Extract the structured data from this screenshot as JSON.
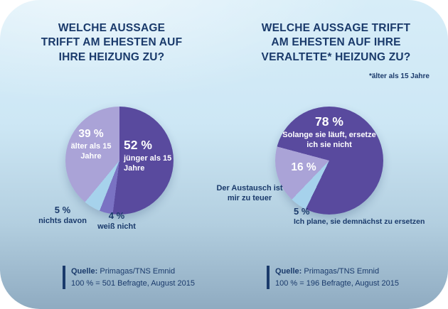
{
  "colors": {
    "text_navy": "#1a3a6b",
    "dark_purple": "#594a9e",
    "medium_purple": "#7a72c3",
    "lavender": "#aaa3d7",
    "light_blue": "#a6d2ec"
  },
  "chart_data": [
    {
      "type": "pie",
      "title": "WELCHE AUSSAGE TRIFFT AM EHESTEN AUF IHRE HEIZUNG ZU?",
      "title_lines": [
        "WELCHE AUSSAGE",
        "TRIFFT AM EHESTEN AUF",
        "IHRE HEIZUNG ZU?"
      ],
      "slices": [
        {
          "label": "jünger als 15 Jahre",
          "value": 52,
          "value_label": "52 %",
          "color": "#594a9e"
        },
        {
          "label": "weiß nicht",
          "value": 4,
          "value_label": "4 %",
          "color": "#7a72c3"
        },
        {
          "label": "nichts davon",
          "value": 5,
          "value_label": "5 %",
          "color": "#a6d2ec"
        },
        {
          "label": "älter als 15 Jahre",
          "value": 39,
          "value_label": "39 %",
          "color": "#aaa3d7"
        }
      ],
      "source_label": "Quelle:",
      "source_name": "Primagas/TNS Emnid",
      "source_line2": "100 % = 501 Befragte, August 2015"
    },
    {
      "type": "pie",
      "title": "WELCHE AUSSAGE TRIFFT AM EHESTEN AUF IHRE VERALTETE* HEIZUNG ZU?",
      "title_lines": [
        "WELCHE AUSSAGE TRIFFT",
        "AM EHESTEN AUF IHRE",
        "VERALTETE* HEIZUNG ZU?"
      ],
      "footnote": "*älter als 15 Jahre",
      "slices": [
        {
          "label": "Solange sie läuft, ersetze ich sie nicht",
          "value": 78,
          "value_label": "78 %",
          "color": "#594a9e"
        },
        {
          "label": "Ich plane, sie demnächst zu ersetzen",
          "value": 5,
          "value_label": "5 %",
          "color": "#a6d2ec"
        },
        {
          "label": "Der Austausch ist mir zu teuer",
          "value": 16,
          "value_label": "16 %",
          "color": "#aaa3d7"
        }
      ],
      "source_label": "Quelle:",
      "source_name": "Primagas/TNS Emnid",
      "source_line2": "100 % = 196 Befragte, August 2015"
    }
  ]
}
